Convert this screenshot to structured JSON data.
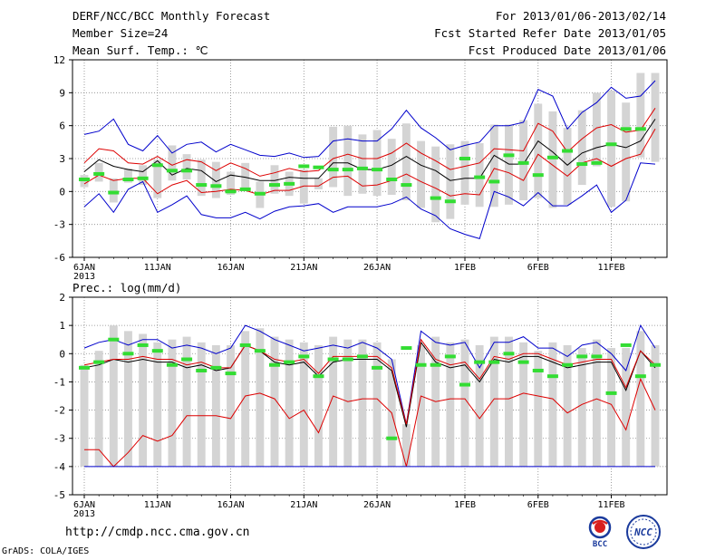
{
  "header": {
    "title": "DERF/NCC/BCC Monthly Forecast",
    "member_size": "Member Size=24",
    "temp_var": "Mean Surf. Temp.: ℃",
    "forecast_period": "For 2013/01/06-2013/02/14",
    "start_date": "Fcst Started Refer Date 2013/01/05",
    "produced_date": "Fcst Produced Date 2013/01/06"
  },
  "footer": {
    "url": "http://cmdp.ncc.cma.gov.cn",
    "grads": "GrADS: COLA/IGES"
  },
  "logos": {
    "bcc_text": "BCC",
    "ncc_text": "NCC"
  },
  "colors": {
    "max_min": "#0000cc",
    "percentile": "#dd0000",
    "mean": "#000000",
    "median_mark": "#33dd33",
    "bar": "#d4d4d4",
    "grid": "#888888"
  },
  "chart_data": [
    {
      "type": "line",
      "title": "Mean Surf. Temp.: ℃",
      "x_tick_labels": [
        "6JAN\n2013",
        "11JAN",
        "16JAN",
        "21JAN",
        "26JAN",
        "1FEB",
        "6FEB",
        "11FEB"
      ],
      "x_tick_days": [
        0,
        5,
        10,
        15,
        20,
        26,
        31,
        36
      ],
      "ylim": [
        -6,
        12
      ],
      "yticks": [
        -6,
        -3,
        0,
        3,
        6,
        9,
        12
      ],
      "days": 40,
      "series": [
        {
          "name": "max",
          "values": [
            5.2,
            5.5,
            6.6,
            4.3,
            3.7,
            5.1,
            3.5,
            4.3,
            4.5,
            3.6,
            4.3,
            3.8,
            3.3,
            3.2,
            3.5,
            3.1,
            3.2,
            4.6,
            4.8,
            4.6,
            4.6,
            5.7,
            7.4,
            5.8,
            4.9,
            3.8,
            4.2,
            4.5,
            6.0,
            6.0,
            6.3,
            9.3,
            8.7,
            5.7,
            7.2,
            8.1,
            9.5,
            8.5,
            8.7,
            10.1
          ]
        },
        {
          "name": "p_upper",
          "values": [
            2.6,
            3.9,
            3.7,
            2.6,
            2.5,
            3.2,
            2.4,
            2.9,
            2.7,
            1.9,
            2.6,
            2.1,
            1.4,
            1.7,
            2.1,
            1.8,
            1.9,
            3.0,
            3.4,
            3.0,
            3.0,
            3.5,
            4.4,
            3.5,
            2.8,
            2.0,
            2.3,
            2.6,
            3.9,
            3.8,
            3.7,
            6.2,
            5.5,
            3.6,
            4.8,
            5.8,
            6.1,
            5.4,
            5.6,
            7.6
          ]
        },
        {
          "name": "mean",
          "values": [
            1.8,
            2.9,
            2.3,
            2.0,
            1.8,
            2.8,
            1.5,
            2.1,
            1.9,
            0.9,
            1.5,
            1.3,
            1.0,
            1.0,
            1.3,
            1.2,
            1.2,
            2.6,
            2.6,
            2.0,
            2.0,
            2.4,
            3.2,
            2.4,
            1.9,
            1.0,
            1.2,
            1.2,
            3.3,
            2.5,
            2.5,
            4.6,
            3.6,
            2.4,
            3.5,
            4.0,
            4.3,
            4.0,
            4.6,
            6.6
          ]
        },
        {
          "name": "p_lower",
          "values": [
            0.7,
            1.5,
            1.0,
            1.2,
            1.2,
            -0.2,
            0.6,
            1.0,
            -0.1,
            0.0,
            0.2,
            0.1,
            -0.3,
            0.1,
            0.1,
            0.5,
            0.5,
            1.3,
            1.4,
            0.5,
            0.6,
            1.0,
            1.6,
            0.9,
            0.3,
            -0.4,
            -0.2,
            -0.3,
            2.1,
            1.7,
            1.0,
            3.4,
            2.4,
            1.4,
            2.6,
            3.0,
            2.3,
            3.0,
            3.4,
            5.7
          ]
        },
        {
          "name": "min",
          "values": [
            -1.4,
            -0.2,
            -1.9,
            0.2,
            0.9,
            -1.9,
            -1.2,
            -0.4,
            -2.1,
            -2.4,
            -2.4,
            -1.9,
            -2.5,
            -1.8,
            -1.4,
            -1.3,
            -1.1,
            -1.9,
            -1.4,
            -1.4,
            -1.4,
            -1.1,
            -0.5,
            -1.6,
            -2.2,
            -3.4,
            -3.9,
            -4.3,
            0.0,
            -0.5,
            -1.3,
            -0.1,
            -1.3,
            -1.3,
            -0.4,
            0.6,
            -1.9,
            -0.8,
            2.6,
            2.5
          ]
        }
      ],
      "bars_low": [
        0.4,
        0.9,
        -1.0,
        0.8,
        0.6,
        -0.6,
        1.0,
        1.1,
        -0.4,
        -0.6,
        -0.3,
        0.2,
        -1.5,
        -0.2,
        -0.4,
        -1.1,
        0.2,
        0.4,
        -0.4,
        -0.2,
        -0.4,
        -0.3,
        -0.8,
        -1.5,
        -2.8,
        -2.5,
        -1.2,
        -1.4,
        -1.4,
        -1.2,
        -0.8,
        -0.6,
        -1.5,
        -1.2,
        0.6,
        2.3,
        -1.4,
        -0.9,
        3.1,
        2.7
      ],
      "bars_high": [
        1.5,
        2.6,
        1.2,
        2.1,
        2.4,
        2.9,
        4.2,
        3.4,
        2.9,
        2.7,
        1.8,
        2.6,
        0.9,
        2.4,
        1.8,
        2.0,
        1.2,
        5.9,
        6.0,
        5.2,
        5.6,
        4.8,
        6.2,
        4.6,
        4.1,
        4.3,
        4.6,
        4.4,
        6.1,
        6.1,
        6.5,
        8.0,
        7.3,
        5.8,
        7.4,
        9.0,
        9.2,
        8.1,
        10.8,
        10.8
      ],
      "medians": [
        1.1,
        1.6,
        -0.1,
        1.1,
        1.2,
        2.4,
        1.9,
        1.9,
        0.6,
        0.5,
        0.0,
        0.2,
        -0.2,
        0.6,
        0.7,
        2.3,
        2.2,
        2.0,
        2.0,
        2.1,
        2.0,
        1.1,
        0.6,
        null,
        -0.6,
        -0.9,
        3.0,
        1.3,
        0.9,
        3.3,
        2.6,
        1.5,
        3.1,
        3.7,
        2.5,
        2.6,
        4.3,
        5.7,
        5.7,
        null
      ]
    },
    {
      "type": "line",
      "title": "Prec.: log(mm/d)",
      "x_tick_labels": [
        "6JAN\n2013",
        "11JAN",
        "16JAN",
        "21JAN",
        "26JAN",
        "1FEB",
        "6FEB",
        "11FEB"
      ],
      "x_tick_days": [
        0,
        5,
        10,
        15,
        20,
        26,
        31,
        36
      ],
      "ylim": [
        -5,
        2
      ],
      "yticks": [
        -5,
        -4,
        -3,
        -2,
        -1,
        0,
        1,
        2
      ],
      "days": 40,
      "series": [
        {
          "name": "max",
          "values": [
            0.2,
            0.4,
            0.5,
            0.3,
            0.5,
            0.5,
            0.2,
            0.3,
            0.2,
            0.0,
            0.2,
            1.0,
            0.8,
            0.5,
            0.3,
            0.1,
            0.2,
            0.3,
            0.2,
            0.4,
            0.2,
            -0.2,
            -2.5,
            0.8,
            0.4,
            0.3,
            0.4,
            -0.5,
            0.4,
            0.4,
            0.6,
            0.2,
            0.2,
            -0.1,
            0.3,
            0.4,
            0.0,
            -0.6,
            1.0,
            0.2
          ]
        },
        {
          "name": "mean",
          "values": [
            -0.5,
            -0.4,
            -0.2,
            -0.3,
            -0.2,
            -0.3,
            -0.3,
            -0.5,
            -0.4,
            -0.6,
            -0.5,
            0.3,
            0.1,
            -0.3,
            -0.4,
            -0.3,
            -0.8,
            -0.3,
            -0.2,
            -0.2,
            -0.2,
            -0.6,
            -2.6,
            0.4,
            -0.3,
            -0.5,
            -0.4,
            -1.0,
            -0.2,
            -0.3,
            -0.1,
            -0.1,
            -0.3,
            -0.5,
            -0.4,
            -0.3,
            -0.3,
            -1.3,
            0.1,
            -0.5
          ]
        },
        {
          "name": "p_upper",
          "values": [
            -0.4,
            -0.3,
            -0.2,
            -0.2,
            -0.1,
            -0.2,
            -0.2,
            -0.4,
            -0.3,
            -0.5,
            -0.5,
            0.3,
            0.1,
            -0.2,
            -0.3,
            -0.2,
            -0.7,
            -0.1,
            -0.1,
            -0.1,
            -0.1,
            -0.5,
            -2.5,
            0.5,
            -0.2,
            -0.4,
            -0.3,
            -0.9,
            -0.1,
            -0.2,
            0.0,
            0.0,
            -0.2,
            -0.4,
            -0.3,
            -0.2,
            -0.2,
            -1.2,
            0.1,
            -0.4
          ]
        },
        {
          "name": "p_lower",
          "values": [
            -3.4,
            -3.4,
            -4.0,
            -3.5,
            -2.9,
            -3.1,
            -2.9,
            -2.2,
            -2.2,
            -2.2,
            -2.3,
            -1.5,
            -1.4,
            -1.6,
            -2.3,
            -2.0,
            -2.8,
            -1.5,
            -1.7,
            -1.6,
            -1.6,
            -2.1,
            -4.0,
            -1.5,
            -1.7,
            -1.6,
            -1.6,
            -2.3,
            -1.6,
            -1.6,
            -1.4,
            -1.5,
            -1.6,
            -2.1,
            -1.8,
            -1.6,
            -1.8,
            -2.7,
            -0.9,
            -2.0
          ]
        },
        {
          "name": "min",
          "values": [
            -4,
            -4,
            -4,
            -4,
            -4,
            -4,
            -4,
            -4,
            -4,
            -4,
            -4,
            -4,
            -4,
            -4,
            -4,
            -4,
            -4,
            -4,
            -4,
            -4,
            -4,
            -4,
            -4,
            -4,
            -4,
            -4,
            -4,
            -4,
            -4,
            -4,
            -4,
            -4,
            -4,
            -4,
            -4,
            -4,
            -4,
            -4,
            -4,
            -4
          ]
        }
      ],
      "bars_low": [
        -4,
        -4,
        -4,
        -4,
        -4,
        -4,
        -4,
        -4,
        -4,
        -4,
        -4,
        -4,
        -4,
        -4,
        -4,
        -4,
        -4,
        -4,
        -4,
        -4,
        -4,
        -4,
        -4,
        -4,
        -4,
        -4,
        -4,
        -4,
        -4,
        -4,
        -4,
        -4,
        -4,
        -4,
        -4,
        -4,
        -4,
        -4,
        -4,
        -4
      ],
      "bars_high": [
        -0.4,
        0.1,
        1.0,
        0.8,
        0.7,
        0.4,
        0.5,
        0.6,
        0.4,
        0.3,
        0.3,
        0.8,
        0.9,
        0.6,
        0.5,
        0.4,
        0.3,
        0.6,
        0.5,
        0.5,
        0.4,
        -0.2,
        -2.5,
        0.3,
        0.6,
        0.4,
        0.5,
        0.3,
        0.6,
        0.6,
        0.4,
        0.1,
        0.4,
        0.3,
        0.2,
        0.5,
        0.2,
        0.2,
        0.8,
        0.3
      ],
      "medians": [
        -0.5,
        -0.3,
        0.5,
        0.0,
        0.3,
        0.1,
        -0.4,
        -0.2,
        -0.6,
        -0.5,
        -0.7,
        0.3,
        0.1,
        -0.4,
        -0.3,
        -0.1,
        -0.8,
        -0.2,
        -0.2,
        -0.1,
        -0.5,
        -3.0,
        0.2,
        -0.4,
        -0.4,
        -0.1,
        -1.1,
        -0.3,
        -0.3,
        0.0,
        -0.3,
        -0.6,
        -0.8,
        -0.4,
        -0.1,
        -0.1,
        -1.4,
        0.3,
        -0.8,
        -0.4
      ]
    }
  ]
}
